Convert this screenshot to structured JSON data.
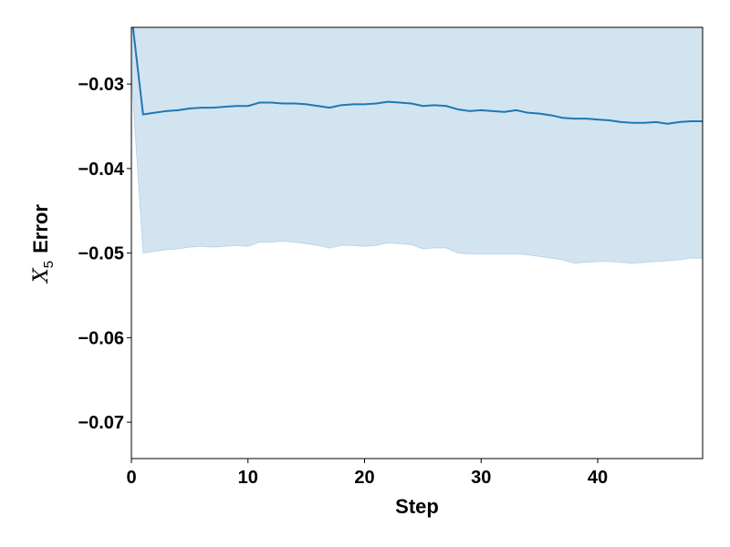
{
  "chart_data": {
    "type": "line",
    "title": "",
    "xlabel": "Step",
    "ylabel": {
      "var": "X",
      "sub": "5",
      "text": "Error"
    },
    "xlim": [
      0,
      49
    ],
    "ylim": [
      -0.0743,
      -0.0233
    ],
    "xticks": [
      0,
      10,
      20,
      30,
      40
    ],
    "xtick_labels": [
      "0",
      "10",
      "20",
      "30",
      "40"
    ],
    "yticks": [
      -0.07,
      -0.06,
      -0.05,
      -0.04,
      -0.03
    ],
    "ytick_labels": [
      "−0.07",
      "−0.06",
      "−0.05",
      "−0.04",
      "−0.03"
    ],
    "grid": false,
    "legend": "none",
    "series": [
      {
        "color": "#1f77b4",
        "band_color": "#1f77b4",
        "x": [
          0,
          1,
          2,
          3,
          4,
          5,
          6,
          7,
          8,
          9,
          10,
          11,
          12,
          13,
          14,
          15,
          16,
          17,
          18,
          19,
          20,
          21,
          22,
          23,
          24,
          25,
          26,
          27,
          28,
          29,
          30,
          31,
          32,
          33,
          34,
          35,
          36,
          37,
          38,
          39,
          40,
          41,
          42,
          43,
          44,
          45,
          46,
          47,
          48,
          49
        ],
        "y": [
          -0.0217,
          -0.0336,
          -0.0334,
          -0.0332,
          -0.0331,
          -0.0329,
          -0.0328,
          -0.0328,
          -0.0327,
          -0.0326,
          -0.0326,
          -0.0322,
          -0.0322,
          -0.0323,
          -0.0323,
          -0.0324,
          -0.0326,
          -0.0328,
          -0.0325,
          -0.0324,
          -0.0324,
          -0.0323,
          -0.0321,
          -0.0322,
          -0.0323,
          -0.0326,
          -0.0325,
          -0.0326,
          -0.033,
          -0.0332,
          -0.0331,
          -0.0332,
          -0.0333,
          -0.0331,
          -0.0334,
          -0.0335,
          -0.0337,
          -0.034,
          -0.0341,
          -0.0341,
          -0.0342,
          -0.0343,
          -0.0345,
          -0.0346,
          -0.0346,
          -0.0345,
          -0.0347,
          -0.0345,
          -0.0344,
          -0.0344
        ],
        "lower": [
          -0.029,
          -0.05,
          -0.0498,
          -0.0496,
          -0.0495,
          -0.0493,
          -0.0492,
          -0.0493,
          -0.0492,
          -0.0491,
          -0.0492,
          -0.0487,
          -0.0487,
          -0.0486,
          -0.0487,
          -0.0489,
          -0.0491,
          -0.0494,
          -0.0491,
          -0.0491,
          -0.0492,
          -0.0491,
          -0.0488,
          -0.0489,
          -0.049,
          -0.0495,
          -0.0494,
          -0.0494,
          -0.05,
          -0.0501,
          -0.0501,
          -0.0501,
          -0.0501,
          -0.0501,
          -0.0502,
          -0.0504,
          -0.0506,
          -0.0508,
          -0.0512,
          -0.0511,
          -0.051,
          -0.051,
          -0.0511,
          -0.0512,
          -0.0511,
          -0.051,
          -0.0509,
          -0.0508,
          -0.0506,
          -0.0506
        ],
        "upper": [
          -0.014,
          -0.017,
          -0.017,
          -0.0168,
          -0.0167,
          -0.0165,
          -0.0164,
          -0.0163,
          -0.0162,
          -0.0161,
          -0.016,
          -0.0157,
          -0.0157,
          -0.016,
          -0.0159,
          -0.0159,
          -0.0161,
          -0.0162,
          -0.0159,
          -0.0157,
          -0.0156,
          -0.0155,
          -0.0154,
          -0.0155,
          -0.0156,
          -0.0157,
          -0.0156,
          -0.0158,
          -0.016,
          -0.0163,
          -0.0161,
          -0.0163,
          -0.0165,
          -0.0161,
          -0.0166,
          -0.0166,
          -0.0168,
          -0.0172,
          -0.017,
          -0.0171,
          -0.0174,
          -0.0176,
          -0.0179,
          -0.018,
          -0.0181,
          -0.018,
          -0.0185,
          -0.0182,
          -0.0182,
          -0.0182
        ]
      }
    ]
  }
}
